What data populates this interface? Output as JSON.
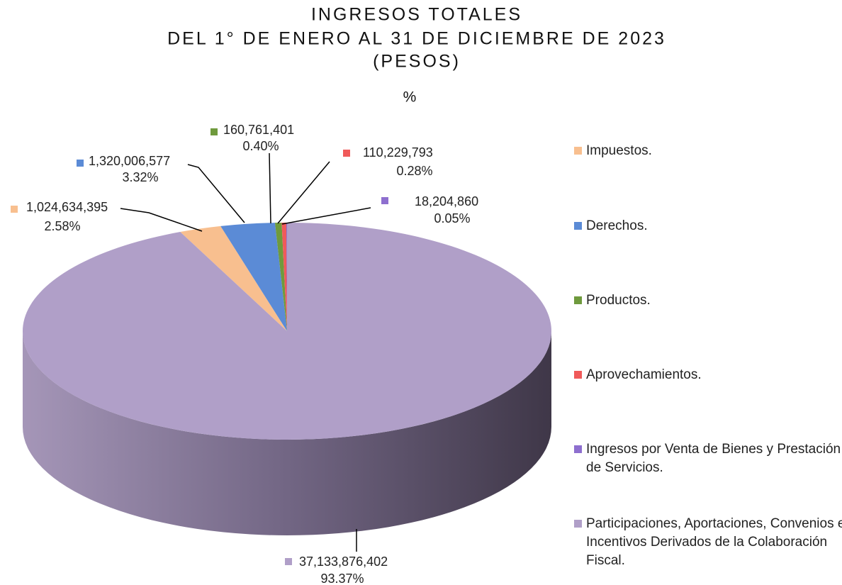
{
  "chart_data": {
    "type": "pie",
    "title": [
      "INGRESOS TOTALES",
      "DEL 1° DE ENERO AL 31 DE DICIEMBRE DE 2023",
      "(PESOS)"
    ],
    "subtitle": "%",
    "categories": [
      "Impuestos.",
      "Derechos.",
      "Productos.",
      "Aprovechamientos.",
      "Ingresos por Venta de Bienes y Prestación de Servicios.",
      "Participaciones, Aportaciones, Convenios e Incentivos Derivados de la Colaboración Fiscal."
    ],
    "values": [
      1024634395,
      1320006577,
      160761401,
      110229793,
      18204860,
      37133876402
    ],
    "value_labels": [
      "1,024,634,395",
      "1,320,006,577",
      "160,761,401",
      "110,229,793",
      "18,204,860",
      "37,133,876,402"
    ],
    "percent_labels": [
      "2.58%",
      "3.32%",
      "0.40%",
      "0.28%",
      "0.05%",
      "93.37%"
    ],
    "colors": [
      "#f8bf8f",
      "#5b8bd6",
      "#6f9a3d",
      "#f05a5a",
      "#8e6fcf",
      "#b09fc8"
    ],
    "legend": "right"
  }
}
